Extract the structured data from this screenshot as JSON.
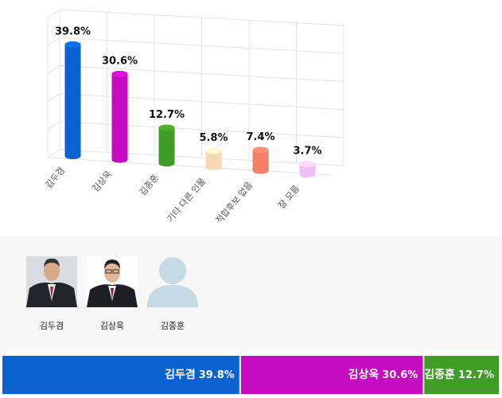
{
  "chart_data": {
    "type": "bar3d",
    "categories": [
      "김두겸",
      "김상욱",
      "김종훈",
      "기타 다른 인물",
      "적합후보 없음",
      "잘 모름"
    ],
    "values": [
      39.8,
      30.6,
      12.7,
      5.8,
      7.4,
      3.7
    ],
    "value_labels": [
      "39.8%",
      "30.6%",
      "12.7%",
      "5.8%",
      "7.4%",
      "3.7%"
    ],
    "colors": [
      "#0a62d0",
      "#c50cc0",
      "#3f9c24",
      "#f6d9b4",
      "#f47f66",
      "#efbff6"
    ],
    "ylim": [
      0,
      50
    ],
    "yticks": [
      0,
      10,
      20,
      30,
      40,
      50
    ],
    "grid": true
  }
}
